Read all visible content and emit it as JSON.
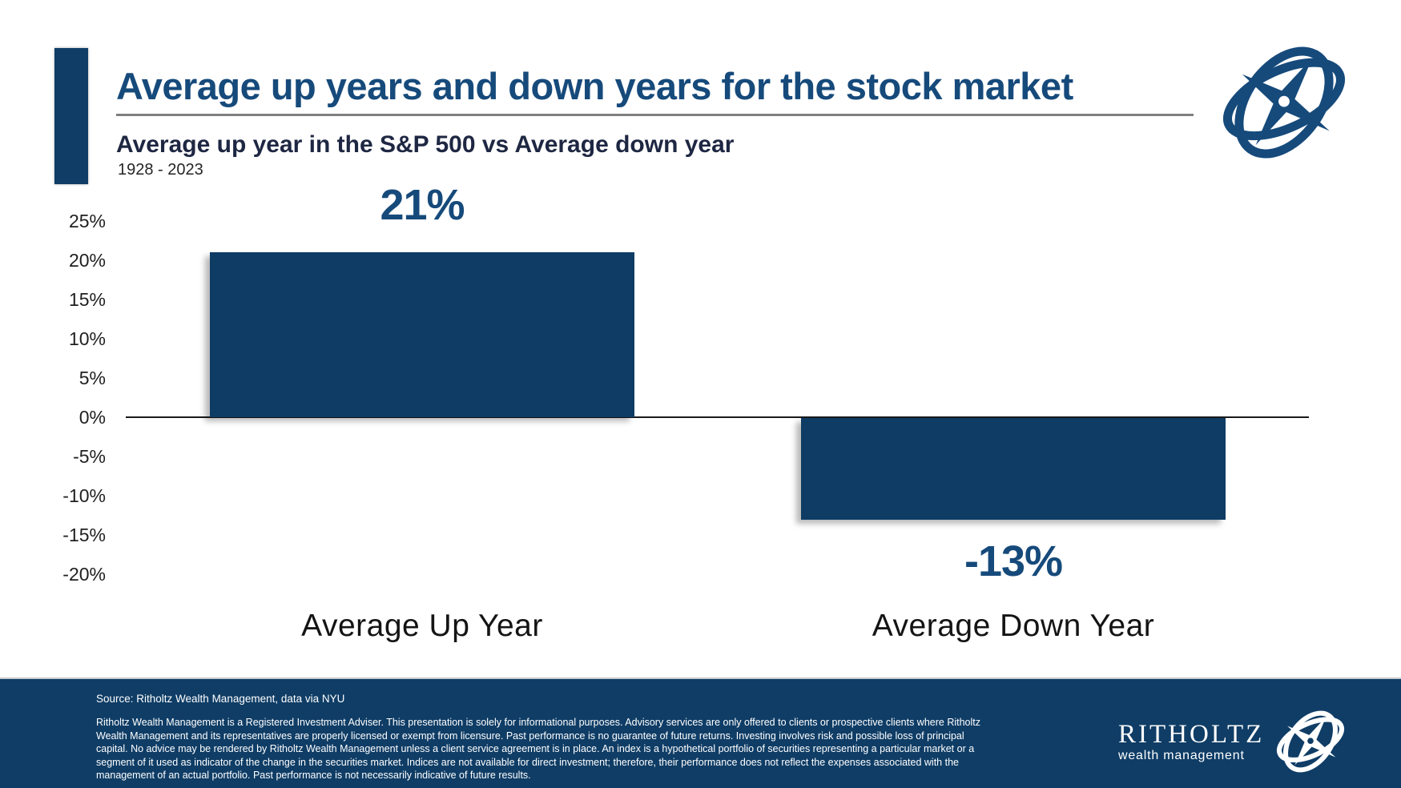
{
  "header": {
    "title": "Average up years and down years for the stock market",
    "subtitle": "Average up year in the S&P 500 vs Average down year",
    "period": "1928 - 2023"
  },
  "chart_data": {
    "type": "bar",
    "title": "Average up year in the S&P 500 vs Average down year",
    "subtitle_period": "1928 - 2023",
    "categories": [
      "Average Up Year",
      "Average Down Year"
    ],
    "values": [
      21,
      -13
    ],
    "value_labels": [
      "21%",
      "-13%"
    ],
    "xlabel": "",
    "ylabel": "",
    "y_ticks": [
      25,
      20,
      15,
      10,
      5,
      0,
      -5,
      -10,
      -15,
      -20
    ],
    "y_tick_labels": [
      "25%",
      "20%",
      "15%",
      "10%",
      "5%",
      "0%",
      "-5%",
      "-10%",
      "-15%",
      "-20%"
    ],
    "ylim": [
      -22,
      27
    ],
    "grid": false,
    "legend": false,
    "bar_color": "#0E3C64",
    "value_label_color": "#164A7B"
  },
  "colors": {
    "navy": "#0E3C64",
    "title_blue": "#164A7B",
    "subtitle_dark": "#1E2742",
    "rule_gray": "#7F7F7F",
    "axis_black": "#1A1A1A",
    "footer_bg": "#0F3D66",
    "footer_text": "#FFFFFF"
  },
  "icons": {
    "top_logo": "ritholtz-compass-icon",
    "footer_logo": "ritholtz-compass-icon"
  },
  "footer": {
    "source": "Source: Ritholtz Wealth Management, data via NYU",
    "disclaimer": "Ritholtz Wealth Management is a Registered Investment Adviser. This presentation is solely for informational purposes. Advisory services are only offered to clients or prospective clients where Ritholtz Wealth Management and its representatives are properly licensed or exempt from licensure. Past performance is no guarantee of future returns. Investing involves risk and possible loss of principal capital. No advice may be rendered by Ritholtz Wealth Management unless a client service agreement is in place. An index is a hypothetical portfolio of securities representing a particular market or a segment of it used as indicator of the change in the securities market. Indices are not available for direct investment; therefore, their performance does not reflect the expenses associated with the management of an actual portfolio. Past performance is not necessarily indicative of future results.",
    "brand_name": "RITHOLTZ",
    "brand_tagline": "wealth management"
  }
}
